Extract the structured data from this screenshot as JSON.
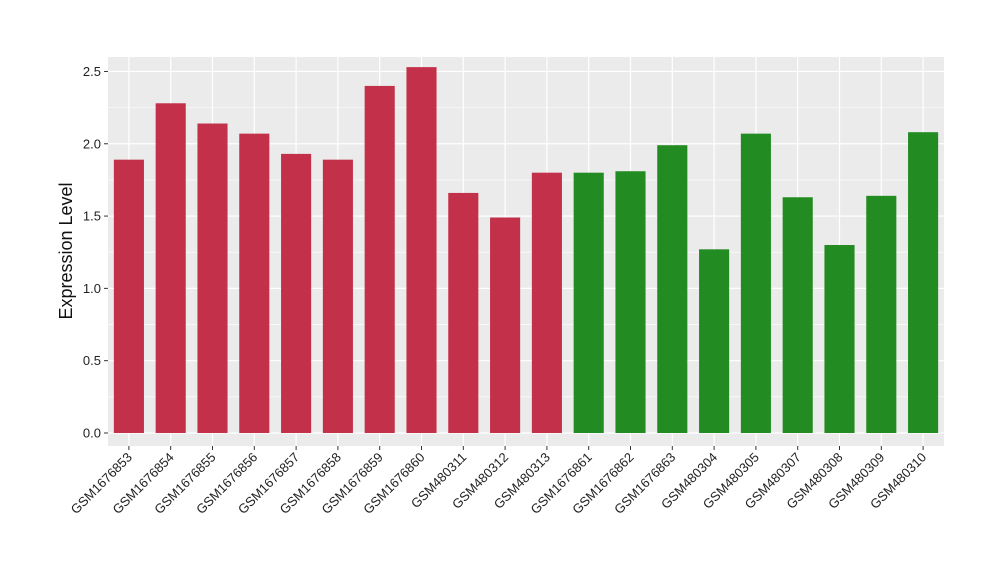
{
  "chart_data": {
    "type": "bar",
    "title": "",
    "xlabel": "",
    "ylabel": "Expression Level",
    "ylim": [
      -0.09,
      2.6
    ],
    "yticks": [
      0.0,
      0.5,
      1.0,
      1.5,
      2.0,
      2.5
    ],
    "ytick_labels": [
      "0.0",
      "0.5",
      "1.0",
      "1.5",
      "2.0",
      "2.5"
    ],
    "grid": true,
    "legend": "none",
    "categories": [
      "GSM1676853",
      "GSM1676854",
      "GSM1676855",
      "GSM1676856",
      "GSM1676857",
      "GSM1676858",
      "GSM1676859",
      "GSM1676860",
      "GSM480311",
      "GSM480312",
      "GSM480313",
      "GSM1676861",
      "GSM1676862",
      "GSM1676863",
      "GSM480304",
      "GSM480305",
      "GSM480307",
      "GSM480308",
      "GSM480309",
      "GSM480310"
    ],
    "values": [
      1.89,
      2.28,
      2.14,
      2.07,
      1.93,
      1.89,
      2.4,
      2.53,
      1.66,
      1.49,
      1.8,
      1.8,
      1.81,
      1.99,
      1.27,
      2.07,
      1.63,
      1.3,
      1.64,
      2.08
    ],
    "bar_colors": [
      "#c3304a",
      "#c3304a",
      "#c3304a",
      "#c3304a",
      "#c3304a",
      "#c3304a",
      "#c3304a",
      "#c3304a",
      "#c3304a",
      "#c3304a",
      "#c3304a",
      "#228b22",
      "#228b22",
      "#228b22",
      "#228b22",
      "#228b22",
      "#228b22",
      "#228b22",
      "#228b22",
      "#228b22"
    ],
    "panel_background": "#ebebeb",
    "grid_color": "#ffffff"
  }
}
